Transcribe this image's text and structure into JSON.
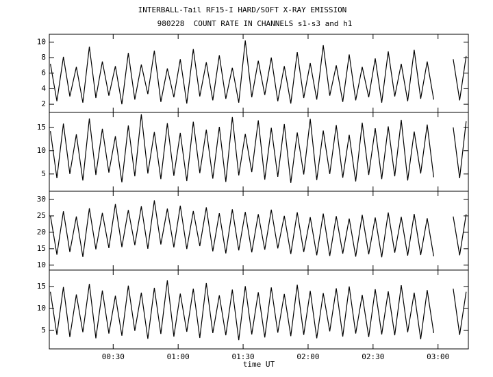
{
  "chart_data": [
    {
      "type": "line",
      "title": "INTERBALL-Tail RF15-I HARD/SOFT X-RAY EMISSION",
      "subtitle": "980228  COUNT RATE IN CHANNELS s1-s3 and h1",
      "x": [
        1,
        4,
        7,
        10,
        13,
        16,
        19,
        22,
        25,
        28,
        31,
        34,
        37,
        40,
        43,
        46,
        49,
        52,
        55,
        58,
        61,
        64,
        67,
        70,
        73,
        76,
        79,
        82,
        85,
        88,
        91,
        94,
        97,
        100,
        103,
        106,
        109,
        112,
        115,
        118,
        121,
        124,
        127,
        130,
        133,
        136,
        139,
        142,
        145,
        148,
        151,
        154,
        157,
        160,
        163,
        166,
        169,
        172,
        175,
        178,
        183,
        187,
        190,
        193
      ],
      "values": [
        7.2,
        2.4,
        8.1,
        3.0,
        6.8,
        2.2,
        9.4,
        2.8,
        7.5,
        3.1,
        6.9,
        2.0,
        8.6,
        2.6,
        7.1,
        3.3,
        8.9,
        2.3,
        6.6,
        2.9,
        7.8,
        2.1,
        9.1,
        3.0,
        7.4,
        2.5,
        8.3,
        2.7,
        6.7,
        2.2,
        10.2,
        2.9,
        7.6,
        3.2,
        8.0,
        2.4,
        6.9,
        2.1,
        8.7,
        2.8,
        7.3,
        2.6,
        9.6,
        3.1,
        7.0,
        2.3,
        8.4,
        2.5,
        6.8,
        2.9,
        7.9,
        2.2,
        8.8,
        3.0,
        7.2,
        2.4,
        9.0,
        2.7,
        7.5,
        2.6,
        null,
        7.8,
        2.5,
        8.2
      ],
      "color": "#000000",
      "xlim": [
        0.5,
        194
      ],
      "ylim": [
        0.95,
        11
      ],
      "yticks": [
        2,
        4,
        6,
        8,
        10
      ],
      "xticks": [
        30,
        60,
        90,
        120,
        150,
        180
      ]
    },
    {
      "type": "line",
      "x": [
        1,
        4,
        7,
        10,
        13,
        16,
        19,
        22,
        25,
        28,
        31,
        34,
        37,
        40,
        43,
        46,
        49,
        52,
        55,
        58,
        61,
        64,
        67,
        70,
        73,
        76,
        79,
        82,
        85,
        88,
        91,
        94,
        97,
        100,
        103,
        106,
        109,
        112,
        115,
        118,
        121,
        124,
        127,
        130,
        133,
        136,
        139,
        142,
        145,
        148,
        151,
        154,
        157,
        160,
        163,
        166,
        169,
        172,
        175,
        178,
        183,
        187,
        190,
        193
      ],
      "values": [
        14.2,
        4.1,
        15.8,
        5.0,
        13.5,
        3.6,
        16.9,
        4.8,
        14.7,
        5.3,
        13.1,
        3.2,
        15.4,
        4.5,
        17.8,
        5.1,
        14.0,
        3.9,
        15.9,
        4.6,
        13.8,
        3.5,
        16.2,
        5.2,
        14.5,
        4.0,
        15.1,
        3.3,
        17.2,
        4.7,
        13.6,
        5.4,
        16.5,
        3.8,
        14.9,
        4.4,
        15.7,
        3.1,
        13.9,
        4.9,
        16.8,
        3.7,
        14.3,
        5.0,
        15.5,
        4.2,
        13.4,
        3.4,
        16.0,
        4.8,
        14.8,
        3.9,
        15.2,
        4.5,
        16.6,
        3.6,
        14.1,
        5.1,
        15.6,
        4.3,
        null,
        15.0,
        4.1,
        16.3
      ],
      "color": "#000000",
      "xlim": [
        0.5,
        194
      ],
      "ylim": [
        1.3,
        18.2
      ],
      "yticks": [
        5,
        10,
        15
      ],
      "xticks": [
        30,
        60,
        90,
        120,
        150,
        180
      ]
    },
    {
      "type": "line",
      "x": [
        1,
        4,
        7,
        10,
        13,
        16,
        19,
        22,
        25,
        28,
        31,
        34,
        37,
        40,
        43,
        46,
        49,
        52,
        55,
        58,
        61,
        64,
        67,
        70,
        73,
        76,
        79,
        82,
        85,
        88,
        91,
        94,
        97,
        100,
        103,
        106,
        109,
        112,
        115,
        118,
        121,
        124,
        127,
        130,
        133,
        136,
        139,
        142,
        145,
        148,
        151,
        154,
        157,
        160,
        163,
        166,
        169,
        172,
        175,
        178,
        183,
        187,
        190,
        193
      ],
      "values": [
        25.1,
        13.2,
        26.4,
        14.0,
        24.8,
        12.5,
        27.3,
        14.8,
        25.9,
        15.2,
        28.6,
        15.5,
        26.8,
        16.1,
        27.9,
        15.0,
        29.7,
        16.3,
        27.2,
        15.4,
        28.1,
        14.9,
        26.5,
        15.8,
        27.6,
        14.2,
        25.8,
        13.6,
        27.0,
        14.5,
        26.2,
        13.9,
        25.5,
        14.7,
        26.9,
        15.1,
        25.0,
        13.4,
        26.1,
        14.0,
        24.6,
        13.0,
        25.7,
        12.8,
        24.9,
        13.5,
        24.2,
        12.6,
        25.3,
        13.3,
        24.5,
        12.4,
        26.0,
        13.8,
        24.7,
        12.9,
        25.6,
        13.1,
        24.3,
        12.7,
        null,
        24.8,
        13.0,
        25.5
      ],
      "color": "#000000",
      "xlim": [
        0.5,
        194
      ],
      "ylim": [
        8.5,
        32.5
      ],
      "yticks": [
        10,
        15,
        20,
        25,
        30
      ],
      "xticks": [
        30,
        60,
        90,
        120,
        150,
        180
      ]
    },
    {
      "type": "line",
      "xlabel": "time UT",
      "x": [
        1,
        4,
        7,
        10,
        13,
        16,
        19,
        22,
        25,
        28,
        31,
        34,
        37,
        40,
        43,
        46,
        49,
        52,
        55,
        58,
        61,
        64,
        67,
        70,
        73,
        76,
        79,
        82,
        85,
        88,
        91,
        94,
        97,
        100,
        103,
        106,
        109,
        112,
        115,
        118,
        121,
        124,
        127,
        130,
        133,
        136,
        139,
        142,
        145,
        148,
        151,
        154,
        157,
        160,
        163,
        166,
        169,
        172,
        175,
        178,
        183,
        187,
        190,
        193
      ],
      "values": [
        13.8,
        4.0,
        14.9,
        3.5,
        13.2,
        4.6,
        15.6,
        3.2,
        14.1,
        4.3,
        12.9,
        3.8,
        15.2,
        4.9,
        13.6,
        3.1,
        14.7,
        4.2,
        16.4,
        3.6,
        13.4,
        4.7,
        14.5,
        3.3,
        15.8,
        4.4,
        13.0,
        3.9,
        14.3,
        2.8,
        15.1,
        4.1,
        13.7,
        3.4,
        14.8,
        4.5,
        13.3,
        3.7,
        15.4,
        4.0,
        14.0,
        3.2,
        13.5,
        4.8,
        14.6,
        3.6,
        15.0,
        4.3,
        13.1,
        3.5,
        14.4,
        4.1,
        13.9,
        3.9,
        15.3,
        4.6,
        13.6,
        3.0,
        14.2,
        4.4,
        null,
        14.5,
        4.0,
        13.8
      ],
      "color": "#000000",
      "xlim": [
        0.5,
        194
      ],
      "ylim": [
        0.8,
        18.75
      ],
      "yticks": [
        5,
        10,
        15
      ],
      "xticks": [
        {
          "value": 30,
          "label": "00:30"
        },
        {
          "value": 60,
          "label": "01:00"
        },
        {
          "value": 90,
          "label": "01:30"
        },
        {
          "value": 120,
          "label": "02:00"
        },
        {
          "value": 150,
          "label": "02:30"
        },
        {
          "value": 180,
          "label": "03:00"
        }
      ]
    }
  ]
}
